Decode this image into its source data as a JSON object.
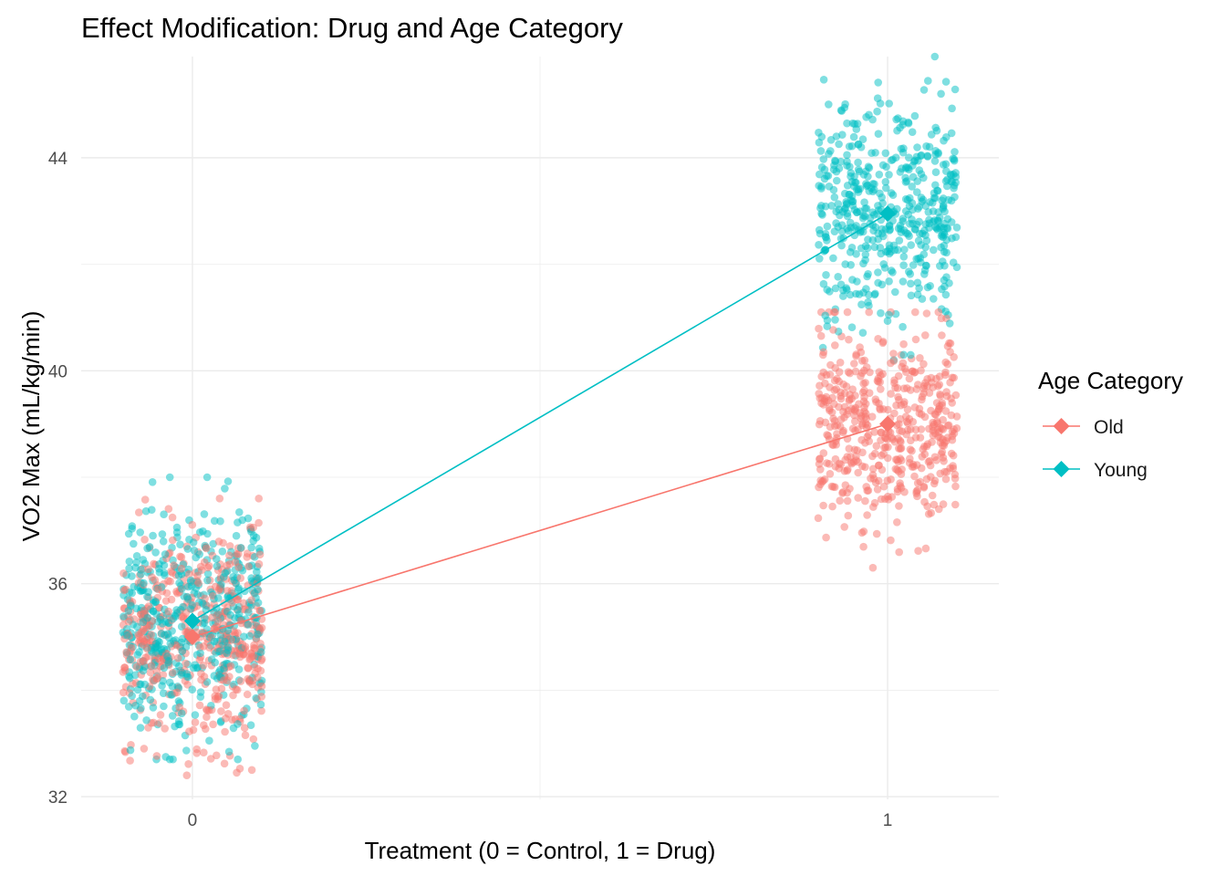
{
  "chart_data": {
    "type": "scatter",
    "title": "Effect Modification: Drug and Age Category",
    "xlabel": "Treatment (0 = Control, 1 = Drug)",
    "ylabel": "VO2 Max (mL/kg/min)",
    "x_ticks": [
      "0",
      "1"
    ],
    "y_ticks": [
      "32",
      "36",
      "40",
      "44"
    ],
    "xlim": [
      -0.16,
      1.16
    ],
    "ylim": [
      31.95,
      45.9
    ],
    "grid": true,
    "legend": {
      "title": "Age Category",
      "placement": "right"
    },
    "jitter_width": 0.1,
    "series": [
      {
        "name": "Old",
        "color": "#F8766D",
        "points_per_group": 500,
        "group_means": [
          {
            "x": 0,
            "y": 35.0,
            "sd": 1.0,
            "y_min": 32.4,
            "y_max": 37.6
          },
          {
            "x": 1,
            "y": 39.0,
            "sd": 0.9,
            "y_min": 36.3,
            "y_max": 41.1
          }
        ]
      },
      {
        "name": "Young",
        "color": "#00BFC4",
        "points_per_group": 500,
        "group_means": [
          {
            "x": 0,
            "y": 35.3,
            "sd": 1.0,
            "y_min": 32.7,
            "y_max": 38.0
          },
          {
            "x": 1,
            "y": 42.95,
            "sd": 1.0,
            "y_min": 40.2,
            "y_max": 45.9
          }
        ]
      }
    ]
  }
}
